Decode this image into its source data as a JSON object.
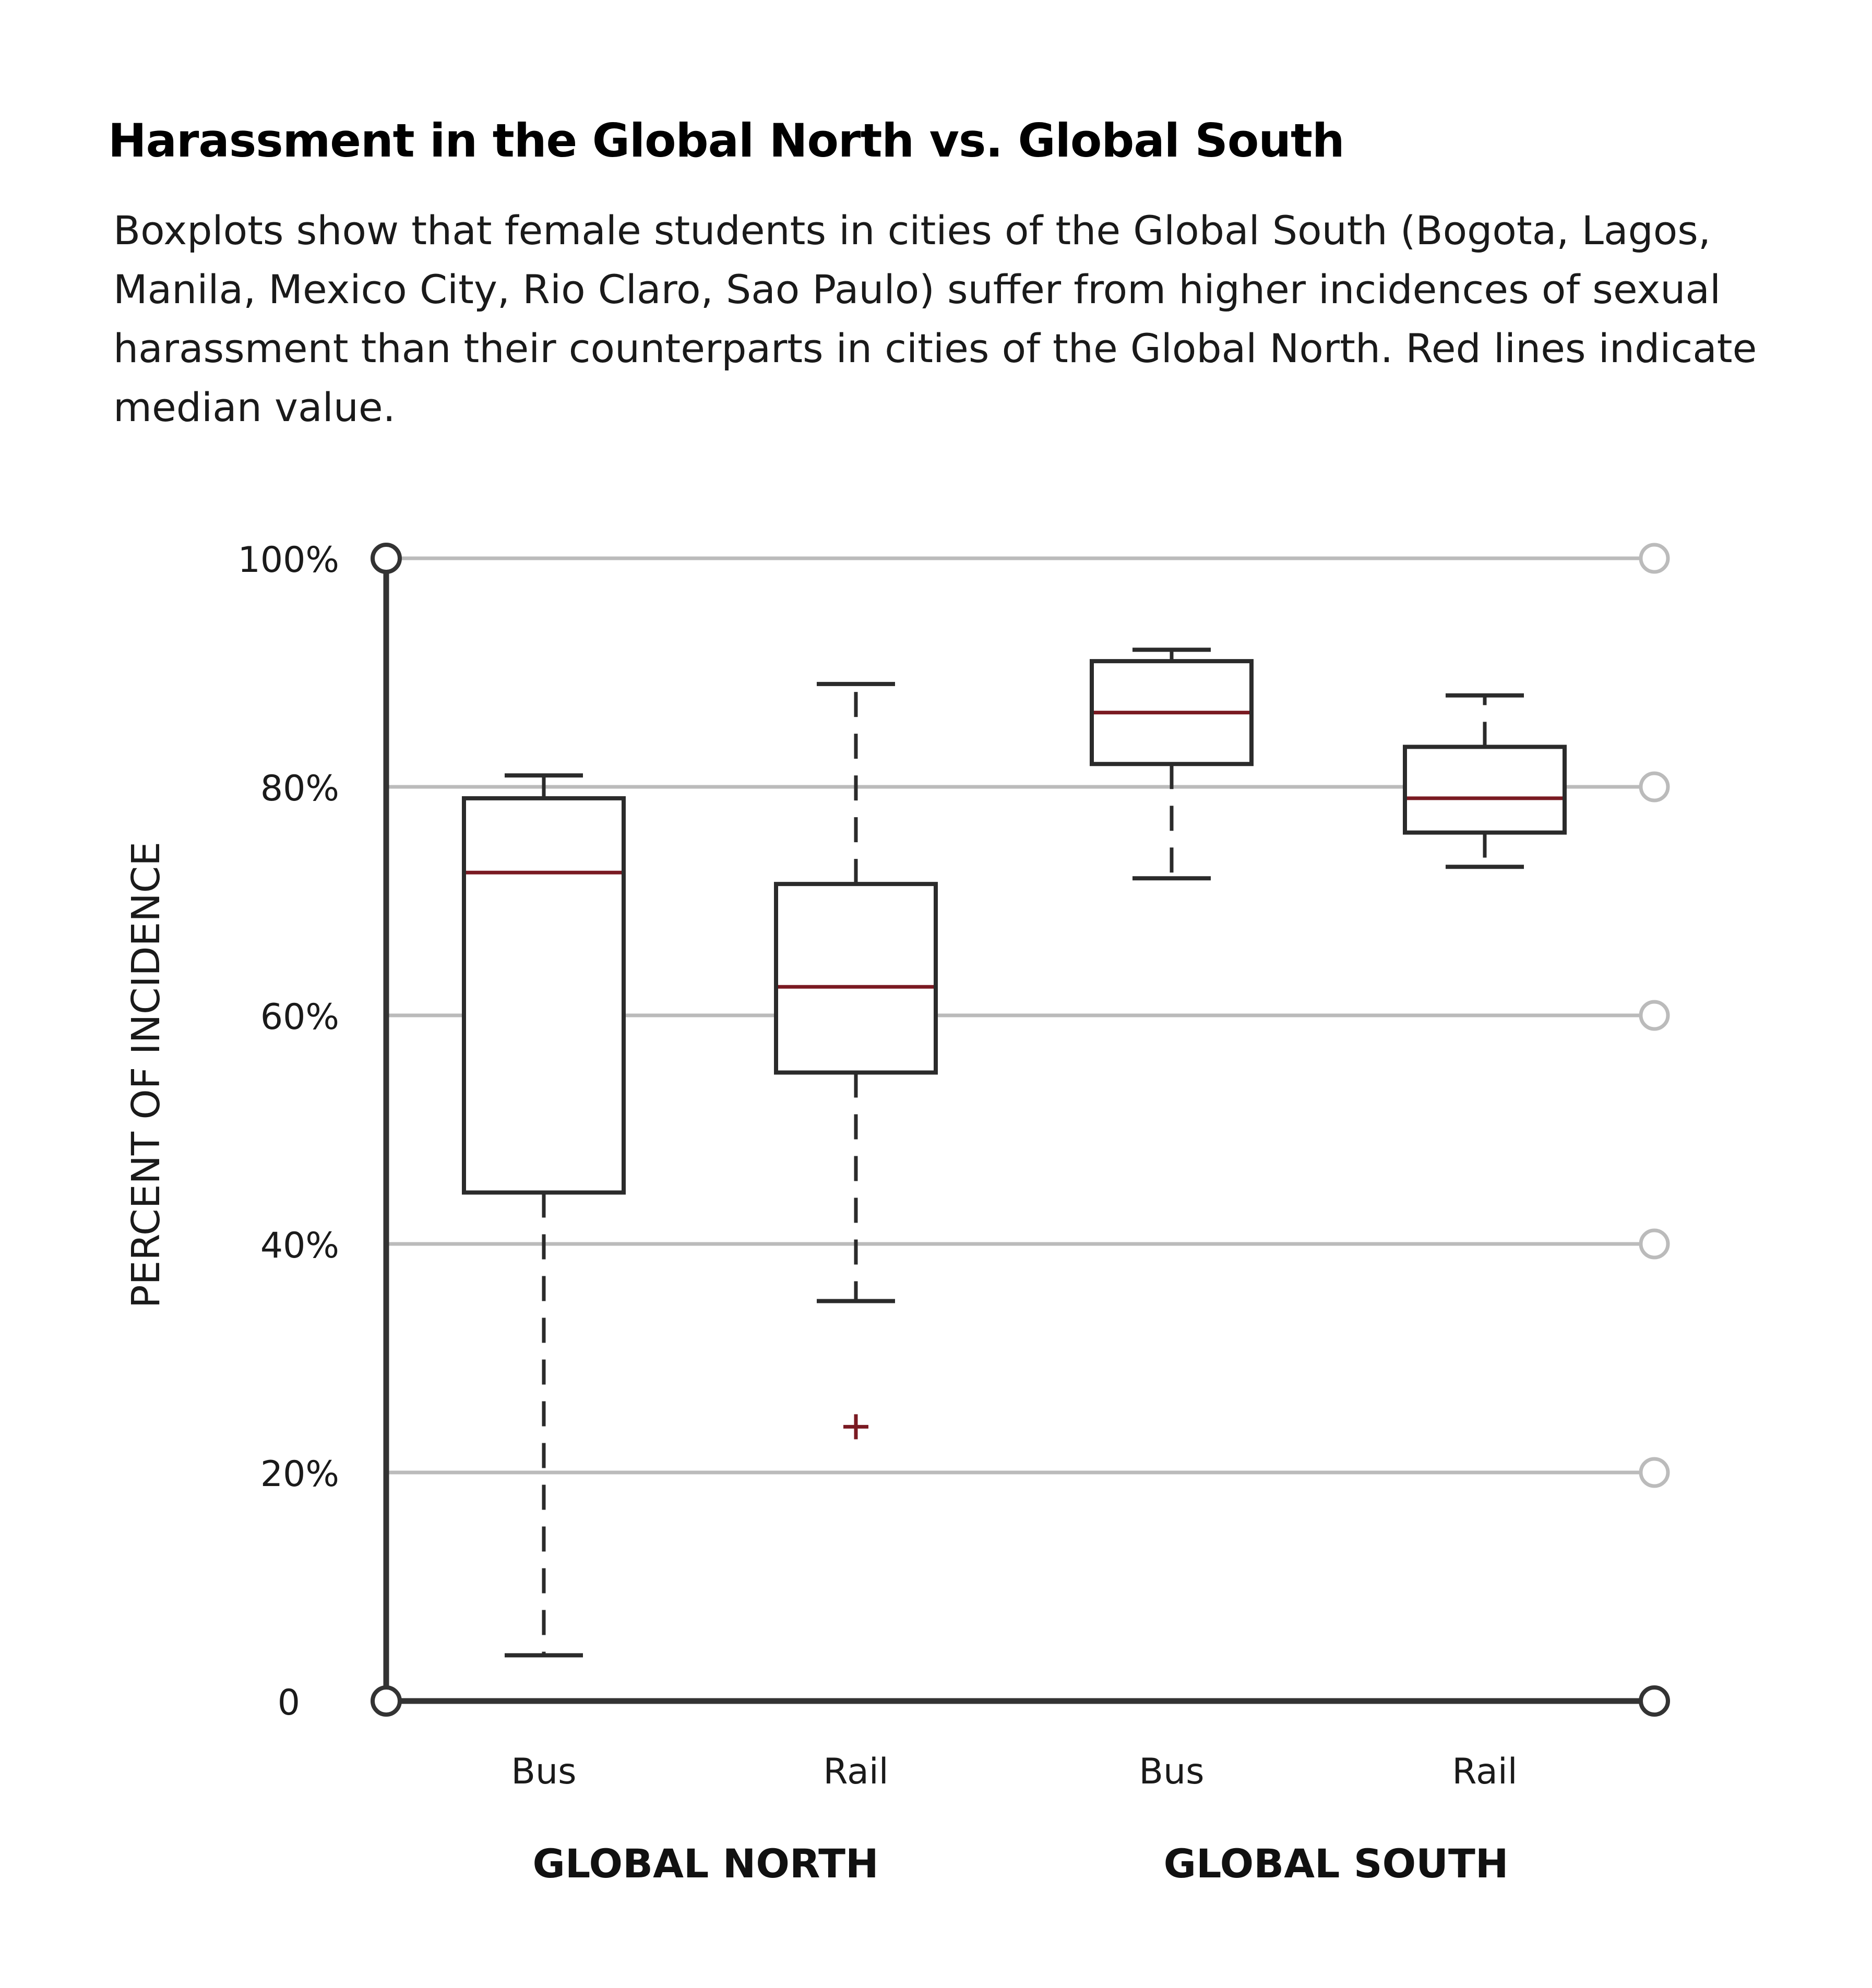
{
  "title": "Harassment in the Global North vs. Global South",
  "subtitle": "Boxplots show that female students in cities of the Global South (Bogota, Lagos, Manila, Mexico City, Rio Claro, Sao Paulo) suffer from higher incidences of sexual harassment than their counterparts in cities of the Global North. Red lines indicate median value.",
  "colors": {
    "axis": "#333333",
    "grid": "#bbbbbb",
    "box": "#2b2b2b",
    "median": "#7a1a22",
    "outlier": "#7a1a22",
    "text": "#1a1a1a"
  },
  "chart_data": {
    "type": "boxplot",
    "ylabel": "PERCENT OF INCIDENCE",
    "ylim": [
      0,
      100
    ],
    "yticks": [
      0,
      20,
      40,
      60,
      80,
      100
    ],
    "ytick_labels": [
      "0",
      "20%",
      "40%",
      "60%",
      "80%",
      "100%"
    ],
    "grid": true,
    "groups": [
      "GLOBAL NORTH",
      "GLOBAL SOUTH"
    ],
    "series": [
      {
        "group": "GLOBAL NORTH",
        "category": "Bus",
        "whisker_low": 4,
        "q1": 44.5,
        "median": 72.5,
        "q3": 79,
        "whisker_high": 81,
        "outliers": []
      },
      {
        "group": "GLOBAL NORTH",
        "category": "Rail",
        "whisker_low": 35,
        "q1": 55,
        "median": 62.5,
        "q3": 71.5,
        "whisker_high": 89,
        "outliers": [
          24
        ]
      },
      {
        "group": "GLOBAL SOUTH",
        "category": "Bus",
        "whisker_low": 72,
        "q1": 82,
        "median": 86.5,
        "q3": 91,
        "whisker_high": 92,
        "outliers": []
      },
      {
        "group": "GLOBAL SOUTH",
        "category": "Rail",
        "whisker_low": 73,
        "q1": 76,
        "median": 79,
        "q3": 83.5,
        "whisker_high": 88,
        "outliers": []
      }
    ]
  }
}
